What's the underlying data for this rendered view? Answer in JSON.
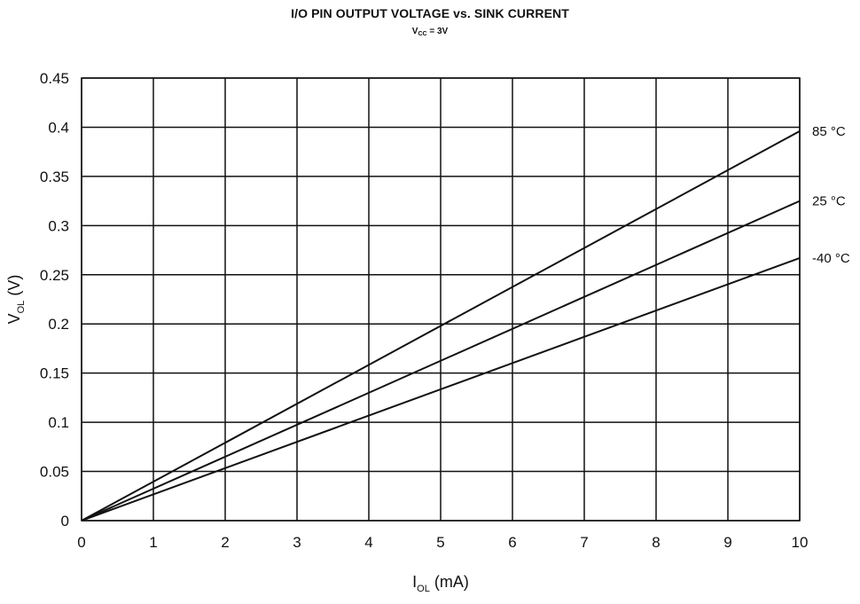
{
  "chart_data": {
    "type": "line",
    "title": "I/O PIN OUTPUT VOLTAGE vs. SINK CURRENT",
    "subtitle": {
      "main": "V",
      "sub": "CC",
      "rest": " = 3V"
    },
    "xlabel": {
      "main": "I",
      "sub": "OL",
      "rest": " (mA)"
    },
    "ylabel": {
      "main": "V",
      "sub": "OL",
      "rest": " (V)"
    },
    "xlim": [
      0,
      10
    ],
    "ylim": [
      0,
      0.45
    ],
    "xticks": [
      "0",
      "1",
      "2",
      "3",
      "4",
      "5",
      "6",
      "7",
      "8",
      "9",
      "10"
    ],
    "yticks": [
      "0",
      "0.05",
      "0.1",
      "0.15",
      "0.2",
      "0.25",
      "0.3",
      "0.35",
      "0.4",
      "0.45"
    ],
    "grid": true,
    "series": [
      {
        "name": "85 °C",
        "x": [
          0,
          10
        ],
        "y": [
          0,
          0.396
        ]
      },
      {
        "name": "25 °C",
        "x": [
          0,
          10
        ],
        "y": [
          0,
          0.325
        ]
      },
      {
        "name": "-40 °C",
        "x": [
          0,
          10
        ],
        "y": [
          0,
          0.267
        ]
      }
    ]
  }
}
